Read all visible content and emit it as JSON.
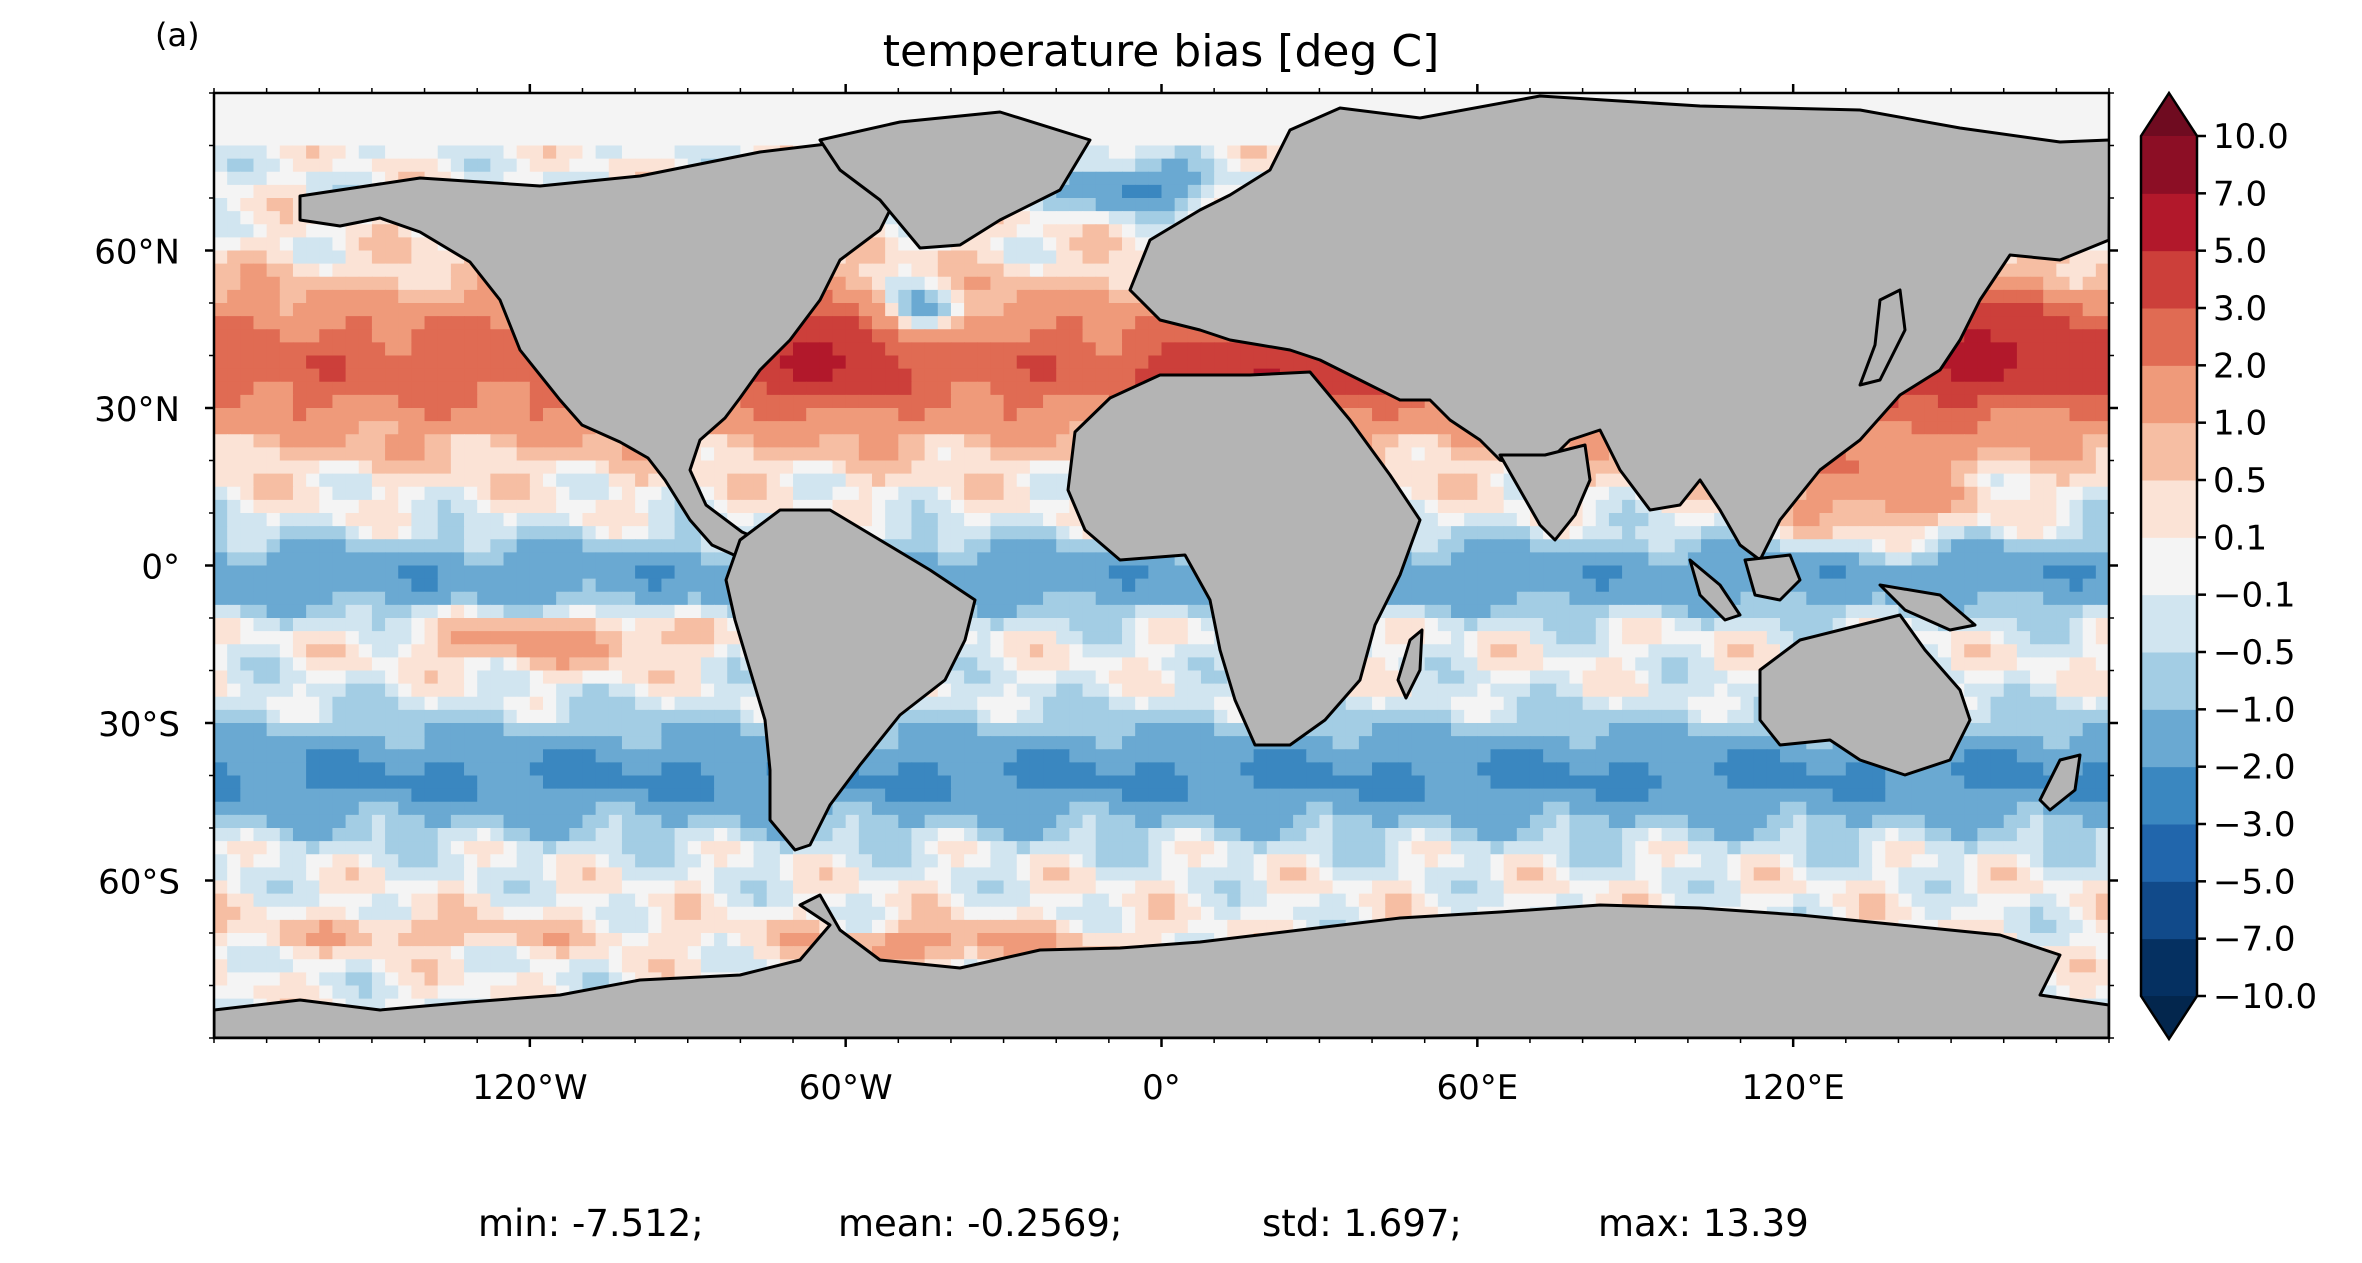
{
  "panel_label": "(a)",
  "title": "temperature bias [deg C]",
  "projection": "plate-carree",
  "extent": {
    "lon": [
      -180,
      180
    ],
    "lat": [
      -90,
      90
    ]
  },
  "lon_ticks": [
    {
      "value": -120,
      "label": "120°W"
    },
    {
      "value": -60,
      "label": "60°W"
    },
    {
      "value": 0,
      "label": "0°"
    },
    {
      "value": 60,
      "label": "60°E"
    },
    {
      "value": 120,
      "label": "120°E"
    }
  ],
  "lat_ticks": [
    {
      "value": 60,
      "label": "60°N"
    },
    {
      "value": 30,
      "label": "30°N"
    },
    {
      "value": 0,
      "label": "0°"
    },
    {
      "value": -30,
      "label": "30°S"
    },
    {
      "value": -60,
      "label": "60°S"
    }
  ],
  "colorbar": {
    "levels": [
      -10.0,
      -7.0,
      -5.0,
      -3.0,
      -2.0,
      -1.0,
      -0.5,
      -0.1,
      0.1,
      0.5,
      1.0,
      2.0,
      3.0,
      5.0,
      7.0,
      10.0
    ],
    "labels": [
      "−10.0",
      "−7.0",
      "−5.0",
      "−3.0",
      "−2.0",
      "−1.0",
      "−0.5",
      "−0.1",
      "0.1",
      "0.5",
      "1.0",
      "2.0",
      "3.0",
      "5.0",
      "7.0",
      "10.0"
    ],
    "colors": [
      "#053061",
      "#114a8a",
      "#2166ac",
      "#3a87c0",
      "#6aa9d2",
      "#a3cde4",
      "#d1e5f0",
      "#f4f4f4",
      "#fbe3d6",
      "#f6bea3",
      "#ef9a7a",
      "#e06b53",
      "#cc3f3a",
      "#b2182b",
      "#8c0e25"
    ],
    "under_color": "#03264d",
    "over_color": "#6f0b20",
    "extend": "both"
  },
  "colors": {
    "land": "#b4b4b4",
    "coast": "#000000",
    "frame": "#000000"
  },
  "stats": [
    {
      "label": "min",
      "value": "-7.512"
    },
    {
      "label": "mean",
      "value": "-0.2569"
    },
    {
      "label": "std",
      "value": "1.697"
    },
    {
      "label": "max",
      "value": "13.39"
    }
  ],
  "stats_text": {
    "min": "min: -7.512;",
    "mean": "mean: -0.2569;",
    "std": "std: 1.697;",
    "max": "max: 13.39"
  }
}
